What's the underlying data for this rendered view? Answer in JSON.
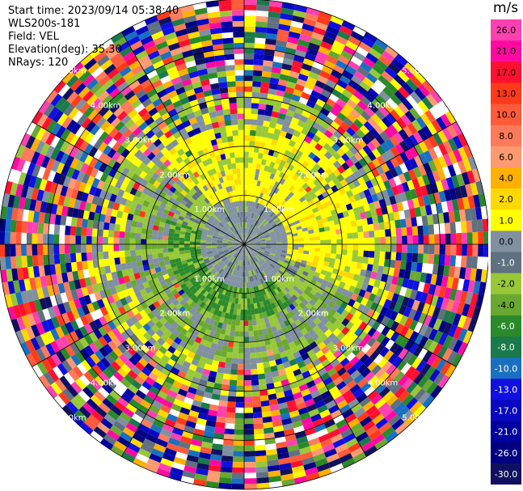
{
  "header": {
    "start_time": "Start time: 2023/09/14 05:38:40",
    "instrument": "WLS200s-181",
    "field": "Field: VEL",
    "elevation": "Elevation(deg): 35.30",
    "nrays": "NRays: 120"
  },
  "chart_data": {
    "type": "heatmap",
    "subtype": "polar-ppi",
    "field": "VEL",
    "units": "m/s",
    "nrays": 120,
    "range_rings_km": [
      1.0,
      2.0,
      3.0,
      4.0,
      5.0
    ],
    "ring_labels": [
      "1.00km",
      "2.00km",
      "3.00km",
      "4.00km",
      "5.00km"
    ],
    "max_range_km": 5.0,
    "colorbar": {
      "label": "m/s",
      "levels": [
        "26.0",
        "21.0",
        "17.0",
        "13.0",
        "10.0",
        "8.0",
        "6.0",
        "4.0",
        "2.0",
        "1.0",
        "0.0",
        "-1.0",
        "-2.0",
        "-4.0",
        "-6.0",
        "-8.0",
        "-10.0",
        "-13.0",
        "-17.0",
        "-21.0",
        "-26.0",
        "-30.0"
      ],
      "colors": [
        "#ff40b0",
        "#ff0aa0",
        "#ff1030",
        "#ff3a1a",
        "#ff5a3a",
        "#ff7a5a",
        "#ff9a70",
        "#ffb000",
        "#ffd800",
        "#ffff00",
        "#8090a0",
        "#607080",
        "#98c838",
        "#6aa832",
        "#2a8a2a",
        "#1a7a4a",
        "#1a70c0",
        "#1010e0",
        "#0808c0",
        "#0000a0",
        "#000080",
        "#101060"
      ]
    }
  }
}
